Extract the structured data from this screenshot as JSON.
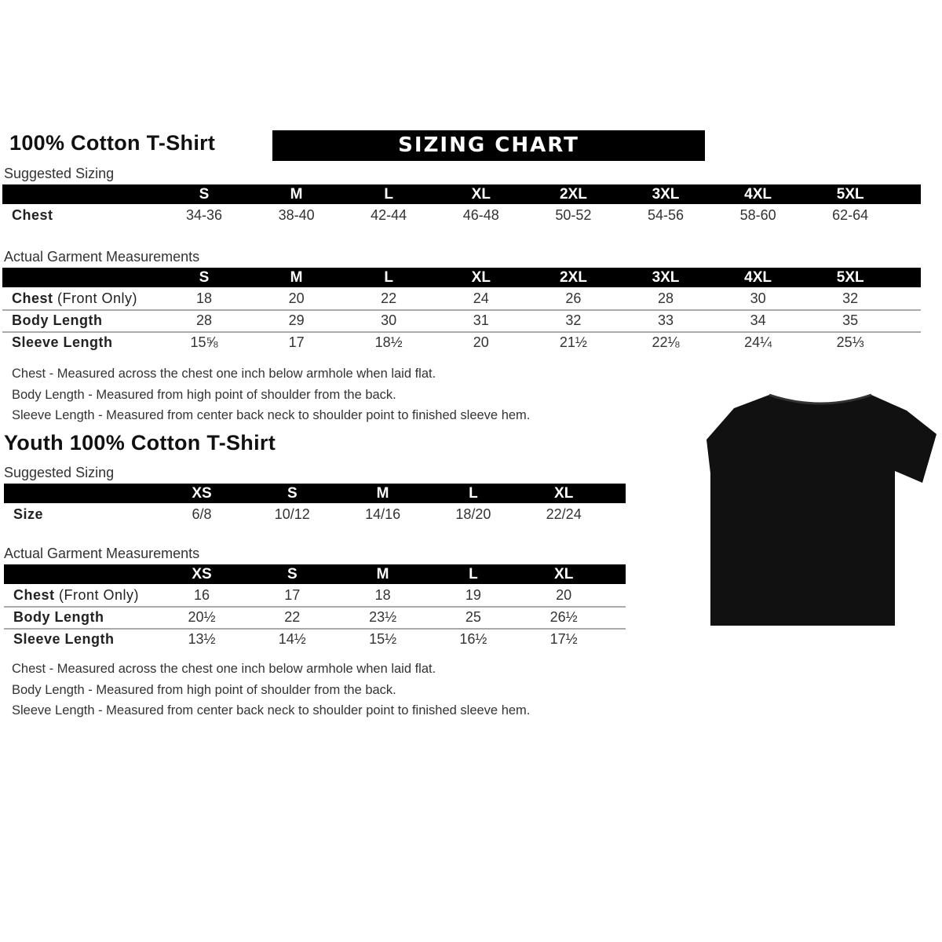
{
  "adult": {
    "title": "100% Cotton T-Shirt",
    "banner": "SIZING CHART",
    "suggested_label": "Suggested Sizing",
    "sizes": [
      "S",
      "M",
      "L",
      "XL",
      "2XL",
      "3XL",
      "4XL",
      "5XL"
    ],
    "suggested_rows": [
      {
        "label": "Chest",
        "note": "",
        "values": [
          "34-36",
          "38-40",
          "42-44",
          "46-48",
          "50-52",
          "54-56",
          "58-60",
          "62-64"
        ]
      }
    ],
    "actual_label": "Actual Garment Measurements",
    "actual_rows": [
      {
        "label": "Chest",
        "note": " (Front Only)",
        "values": [
          "18",
          "20",
          "22",
          "24",
          "26",
          "28",
          "30",
          "32"
        ]
      },
      {
        "label": "Body Length",
        "note": "",
        "values": [
          "28",
          "29",
          "30",
          "31",
          "32",
          "33",
          "34",
          "35"
        ]
      },
      {
        "label": "Sleeve Length",
        "note": "",
        "values": [
          "15⅝",
          "17",
          "18½",
          "20",
          "21½",
          "22⅛",
          "24¼",
          "25⅓"
        ]
      }
    ],
    "notes": [
      "Chest - Measured across the chest one inch below armhole when laid flat.",
      "Body Length - Measured from high point of shoulder from the back.",
      "Sleeve Length - Measured from center back neck to shoulder point to finished sleeve hem."
    ]
  },
  "youth": {
    "title": "Youth 100% Cotton T-Shirt",
    "suggested_label": "Suggested Sizing",
    "sizes": [
      "XS",
      "S",
      "M",
      "L",
      "XL"
    ],
    "suggested_rows": [
      {
        "label": "Size",
        "note": "",
        "values": [
          "6/8",
          "10/12",
          "14/16",
          "18/20",
          "22/24"
        ]
      }
    ],
    "actual_label": "Actual Garment Measurements",
    "actual_rows": [
      {
        "label": "Chest",
        "note": " (Front Only)",
        "values": [
          "16",
          "17",
          "18",
          "19",
          "20"
        ]
      },
      {
        "label": "Body Length",
        "note": "",
        "values": [
          "20½",
          "22",
          "23½",
          "25",
          "26½"
        ]
      },
      {
        "label": "Sleeve Length",
        "note": "",
        "values": [
          "13½",
          "14½",
          "15½",
          "16½",
          "17½"
        ]
      }
    ],
    "notes": [
      "Chest - Measured across the chest one inch below armhole when laid flat.",
      "Body Length - Measured from high point of shoulder from the back.",
      "Sleeve Length - Measured from center back neck to shoulder point to finished sleeve hem."
    ]
  },
  "shirt_color": "#111111"
}
